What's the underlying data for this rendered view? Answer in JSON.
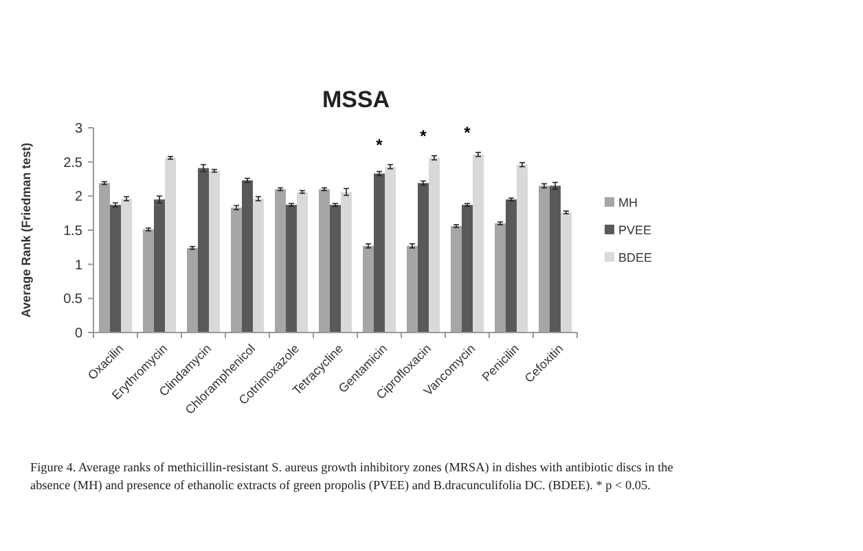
{
  "chart_data": {
    "type": "bar",
    "title": "MSSA",
    "ylabel": "Average Rank (Friedman test)",
    "categories": [
      "Oxacilin",
      "Erythromycin",
      "Clindamycin",
      "Chloramphenicol",
      "Cotrimoxazole",
      "Tetracycline",
      "Gentamicin",
      "Ciprofloxacin",
      "Vancomycin",
      "Penicilin",
      "Cefoxitin"
    ],
    "series": [
      {
        "name": "MH",
        "color": "#a6a6a6",
        "values": [
          2.19,
          1.51,
          1.24,
          1.83,
          2.1,
          2.1,
          1.27,
          1.27,
          1.56,
          1.6,
          2.15
        ],
        "errors": [
          0.02,
          0.02,
          0.02,
          0.03,
          0.02,
          0.02,
          0.03,
          0.03,
          0.02,
          0.02,
          0.03
        ]
      },
      {
        "name": "PVEE",
        "color": "#595959",
        "values": [
          1.87,
          1.95,
          2.41,
          2.23,
          1.87,
          1.87,
          2.33,
          2.19,
          1.87,
          1.95,
          2.15
        ],
        "errors": [
          0.03,
          0.05,
          0.05,
          0.03,
          0.02,
          0.02,
          0.03,
          0.03,
          0.02,
          0.02,
          0.05
        ]
      },
      {
        "name": "BDEE",
        "color": "#d9d9d9",
        "values": [
          1.96,
          2.56,
          2.37,
          1.96,
          2.06,
          2.06,
          2.43,
          2.56,
          2.61,
          2.46,
          1.76
        ],
        "errors": [
          0.03,
          0.02,
          0.02,
          0.03,
          0.02,
          0.05,
          0.03,
          0.03,
          0.03,
          0.03,
          0.02
        ]
      }
    ],
    "ylim": [
      0,
      3
    ],
    "yticks": [
      0,
      0.5,
      1,
      1.5,
      2,
      2.5,
      3
    ],
    "legend": "right",
    "grid": false,
    "annotations": [
      {
        "text": "*",
        "x": "Gentamicin",
        "y": 2.43
      },
      {
        "text": "*",
        "x": "Ciprofloxacin",
        "y": 2.56
      },
      {
        "text": "*",
        "x": "Vancomycin",
        "y": 2.61
      },
      "Figure 4. Average ranks of methicillin-resistant S. aureus growth inhibitory zones (MRSA) in dishes with antibiotic discs in the absence (MH) and presence of ethanolic extracts of green propolis (PVEE) and B.dracunculifolia DC. (BDEE). * p < 0.05."
    ]
  }
}
